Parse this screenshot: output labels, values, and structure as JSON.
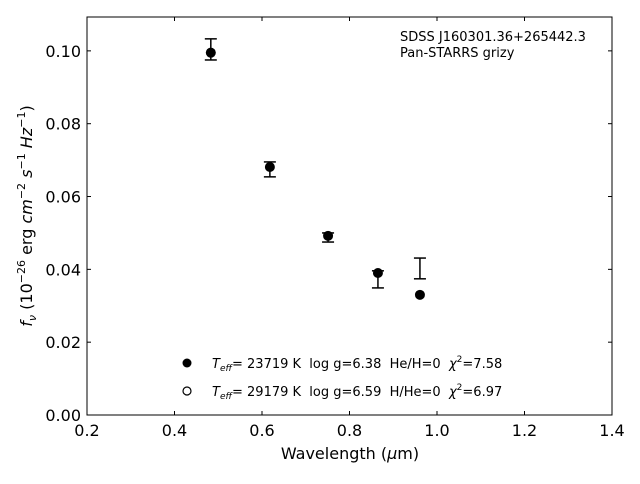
{
  "chart_data": {
    "type": "scatter",
    "title": "",
    "annotations": [
      "SDSS J160301.36+265442.3",
      "Pan-STARRS grizy"
    ],
    "xlabel": "Wavelength (μm)",
    "ylabel": "f_ν (10^-26 erg cm^-2 s^-1 Hz^-1)",
    "xlim": [
      0.2,
      1.4
    ],
    "ylim": [
      0.0,
      0.1093
    ],
    "xticks": [
      0.2,
      0.4,
      0.6,
      0.8,
      1.0,
      1.2,
      1.4
    ],
    "xtick_labels": [
      "0.2",
      "0.4",
      "0.6",
      "0.8",
      "1.0",
      "1.2",
      "1.4"
    ],
    "yticks": [
      0.0,
      0.02,
      0.04,
      0.06,
      0.08,
      0.1
    ],
    "ytick_labels": [
      "0.00",
      "0.02",
      "0.04",
      "0.06",
      "0.08",
      "0.10"
    ],
    "grid": false,
    "legend_position": "bottom-center",
    "observed": {
      "name": "Pan-STARRS photometry",
      "x": [
        0.483,
        0.618,
        0.751,
        0.865,
        0.961
      ],
      "y": [
        0.1004,
        0.0675,
        0.0488,
        0.0373,
        0.0403
      ],
      "yerr_low": [
        0.0975,
        0.0654,
        0.0475,
        0.0349,
        0.0374
      ],
      "yerr_high": [
        0.1033,
        0.0695,
        0.05,
        0.0396,
        0.0431
      ]
    },
    "series": [
      {
        "name": "He/H=0 model",
        "marker": "filled-circle",
        "legend_label": {
          "teff": "= 23719 K  log g=6.38  He/H=0  ",
          "chi": "=7.58"
        },
        "x": [
          0.483,
          0.618,
          0.751,
          0.865,
          0.961
        ],
        "y": [
          0.0995,
          0.0681,
          0.0492,
          0.039,
          0.033
        ]
      },
      {
        "name": "H/He=0 model",
        "marker": "open-circle",
        "legend_label": {
          "teff": "= 29179 K  log g=6.59  H/He=0  ",
          "chi": "=6.97"
        },
        "x": [
          0.483,
          0.618,
          0.751,
          0.865,
          0.961
        ],
        "y": [
          0.0995,
          0.0681,
          0.0492,
          0.039,
          0.033
        ]
      }
    ]
  }
}
